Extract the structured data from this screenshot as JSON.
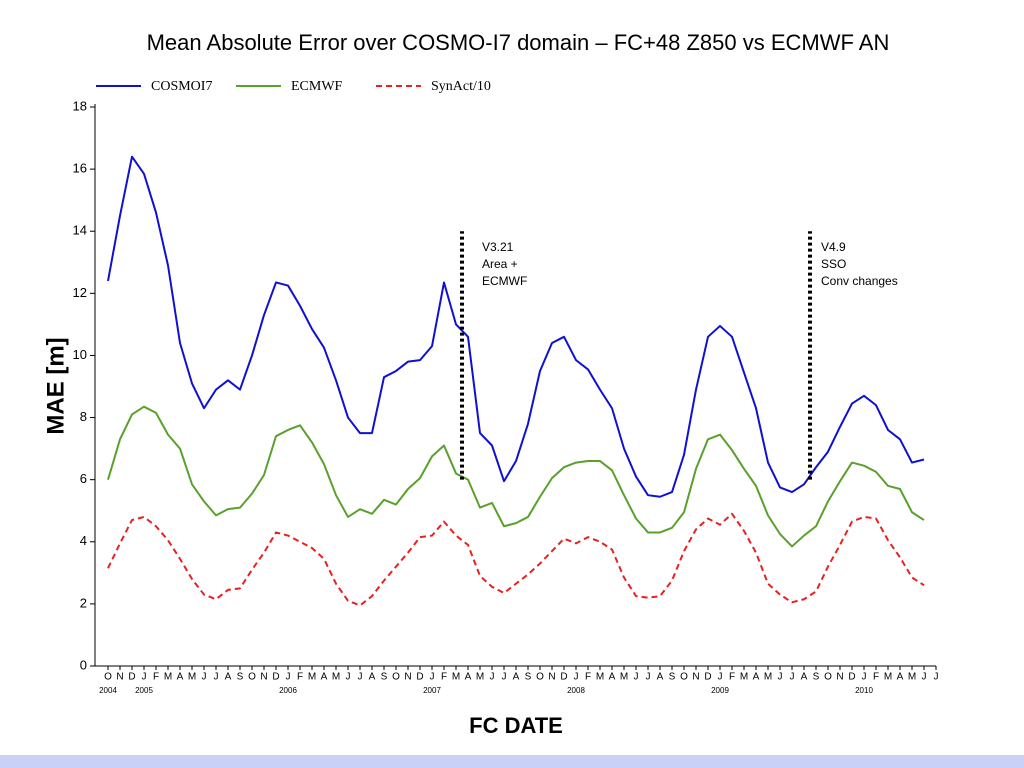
{
  "chart_data": {
    "type": "line",
    "title": "Mean Absolute Error over COSMO-I7 domain – FC+48 Z850 vs ECMWF AN",
    "y_label": "MAE [m]",
    "x_label": "FC DATE",
    "categories": [
      "O",
      "N",
      "D",
      "J",
      "F",
      "M",
      "A",
      "M",
      "J",
      "J",
      "A",
      "S",
      "O",
      "N",
      "D",
      "J",
      "F",
      "M",
      "A",
      "M",
      "J",
      "J",
      "A",
      "S",
      "O",
      "N",
      "D",
      "J",
      "F",
      "M",
      "A",
      "M",
      "J",
      "J",
      "A",
      "S",
      "O",
      "N",
      "D",
      "J",
      "F",
      "M",
      "A",
      "M",
      "J",
      "J",
      "A",
      "S",
      "O",
      "N",
      "D",
      "J",
      "F",
      "M",
      "A",
      "M",
      "J",
      "J",
      "A",
      "S",
      "O",
      "N",
      "D",
      "J",
      "F",
      "M",
      "A",
      "M",
      "J",
      "J"
    ],
    "years": [
      "2004",
      null,
      null,
      "2005",
      null,
      null,
      null,
      null,
      null,
      null,
      null,
      null,
      null,
      null,
      null,
      "2006",
      null,
      null,
      null,
      null,
      null,
      null,
      null,
      null,
      null,
      null,
      null,
      "2007",
      null,
      null,
      null,
      null,
      null,
      null,
      null,
      null,
      null,
      null,
      null,
      "2008",
      null,
      null,
      null,
      null,
      null,
      null,
      null,
      null,
      null,
      null,
      null,
      "2009",
      null,
      null,
      null,
      null,
      null,
      null,
      null,
      null,
      null,
      null,
      null,
      "2010",
      null,
      null,
      null,
      null,
      null,
      null
    ],
    "series": [
      {
        "name": "COSMOI7",
        "color": "#1010d0",
        "dash": false,
        "values": [
          12.4,
          14.5,
          16.4,
          15.85,
          14.6,
          12.9,
          10.4,
          9.1,
          8.3,
          8.9,
          9.2,
          8.9,
          10.0,
          11.3,
          12.35,
          12.25,
          11.6,
          10.85,
          10.25,
          9.2,
          8.0,
          7.5,
          7.5,
          9.3,
          9.5,
          9.8,
          9.85,
          10.3,
          12.35,
          11.0,
          10.6,
          7.5,
          7.1,
          5.95,
          6.6,
          7.8,
          9.5,
          10.4,
          10.6,
          9.85,
          9.55,
          8.9,
          8.3,
          7.0,
          6.1,
          5.5,
          5.45,
          5.6,
          6.8,
          8.9,
          10.6,
          10.95,
          10.6,
          9.45,
          8.3,
          6.55,
          5.75,
          5.6,
          5.85,
          6.4,
          6.9,
          7.7,
          8.45,
          8.7,
          8.4,
          7.6,
          7.3,
          6.55,
          6.65,
          null
        ]
      },
      {
        "name": "ECMWF",
        "color": "#5aa02c",
        "dash": false,
        "values": [
          6.0,
          7.3,
          8.1,
          8.35,
          8.15,
          7.45,
          7.0,
          5.85,
          5.3,
          4.85,
          5.05,
          5.1,
          5.55,
          6.15,
          7.4,
          7.6,
          7.75,
          7.2,
          6.5,
          5.5,
          4.8,
          5.05,
          4.9,
          5.35,
          5.2,
          5.7,
          6.05,
          6.75,
          7.1,
          6.2,
          6.0,
          5.1,
          5.25,
          4.5,
          4.6,
          4.8,
          5.45,
          6.05,
          6.4,
          6.55,
          6.6,
          6.6,
          6.3,
          5.5,
          4.75,
          4.3,
          4.3,
          4.45,
          4.95,
          6.35,
          7.3,
          7.45,
          6.95,
          6.35,
          5.8,
          4.85,
          4.25,
          3.85,
          4.2,
          4.5,
          5.3,
          5.95,
          6.55,
          6.45,
          6.25,
          5.8,
          5.7,
          4.95,
          4.7,
          null
        ]
      },
      {
        "name": "SynAct/10",
        "color": "#e82020",
        "dash": true,
        "values": [
          3.15,
          3.95,
          4.7,
          4.8,
          4.5,
          4.05,
          3.45,
          2.8,
          2.3,
          2.15,
          2.45,
          2.5,
          3.1,
          3.65,
          4.3,
          4.2,
          4.0,
          3.8,
          3.45,
          2.65,
          2.1,
          1.95,
          2.25,
          2.75,
          3.2,
          3.65,
          4.15,
          4.2,
          4.65,
          4.2,
          3.9,
          2.9,
          2.55,
          2.35,
          2.65,
          2.95,
          3.3,
          3.7,
          4.1,
          3.95,
          4.15,
          4.0,
          3.75,
          2.85,
          2.25,
          2.2,
          2.25,
          2.75,
          3.7,
          4.4,
          4.75,
          4.55,
          4.9,
          4.35,
          3.65,
          2.65,
          2.3,
          2.05,
          2.15,
          2.4,
          3.2,
          3.9,
          4.65,
          4.8,
          4.75,
          4.05,
          3.5,
          2.85,
          2.6,
          null
        ]
      }
    ],
    "ylim": [
      0,
      18
    ],
    "yticks": [
      0,
      2,
      4,
      6,
      8,
      10,
      12,
      14,
      16,
      18
    ],
    "annotations": [
      {
        "lines": [
          "V3.21",
          "Area +",
          "ECMWF"
        ],
        "y_from": 6,
        "y_to": 14
      },
      {
        "lines": [
          "V4.9",
          "SSO",
          "Conv changes"
        ],
        "y_from": 6,
        "y_to": 14
      }
    ]
  }
}
